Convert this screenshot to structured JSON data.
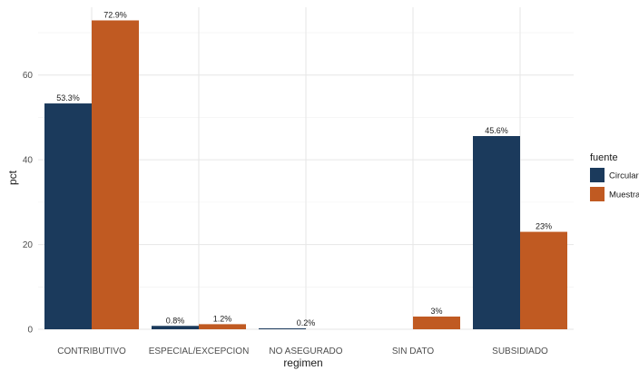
{
  "chart_data": {
    "type": "bar",
    "title": "",
    "xlabel": "regimen",
    "ylabel": "pct",
    "ylim": [
      0,
      76
    ],
    "yticks": [
      0,
      20,
      40,
      60
    ],
    "grid": true,
    "legend": {
      "title": "fuente",
      "position": "right"
    },
    "categories": [
      "CONTRIBUTIVO",
      "ESPECIAL/EXCEPCION",
      "NO ASEGURADO",
      "SIN DATO",
      "SUBSIDIADO"
    ],
    "series": [
      {
        "name": "Circular",
        "color": "#1b3a5c",
        "values": [
          53.3,
          0.8,
          0.2,
          null,
          45.6
        ],
        "labels": [
          "53.3%",
          "0.8%",
          "",
          "",
          "45.6%"
        ]
      },
      {
        "name": "Muestra",
        "color": "#c05a22",
        "values": [
          72.9,
          1.2,
          null,
          3,
          23
        ],
        "labels": [
          "72.9%",
          "1.2%",
          "",
          "3%",
          "23%"
        ]
      }
    ],
    "extra_labels": [
      {
        "category_index": 2,
        "text": "0.2%",
        "value": 0.2
      }
    ]
  }
}
